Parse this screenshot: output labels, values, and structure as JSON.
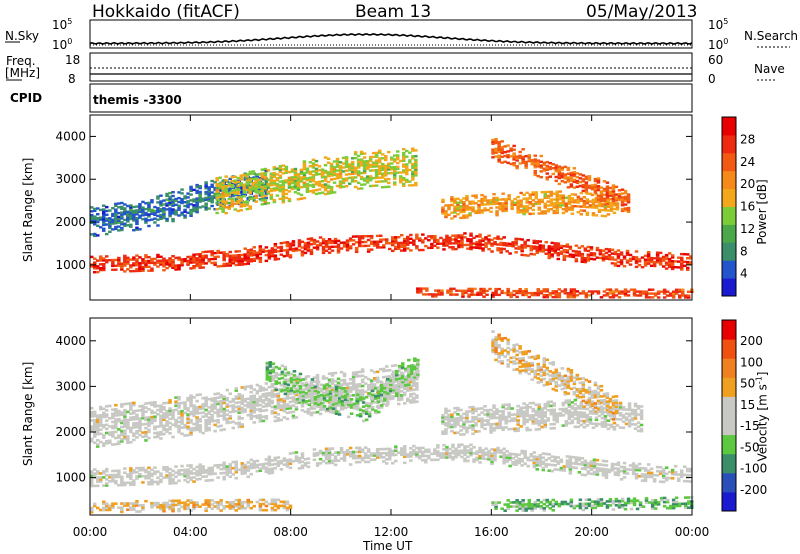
{
  "header": {
    "station": "Hokkaido (fitACF)",
    "beam": "Beam 13",
    "date": "05/May/2013"
  },
  "strips": {
    "nsky": {
      "label": "N.Sky",
      "ticks": [
        "10^5",
        "10^0"
      ]
    },
    "nsearch": {
      "label": "N.Search",
      "ticks": [
        "10^5",
        "10^0"
      ]
    },
    "freq": {
      "label_line1": "Freq.",
      "label_line2": "[MHz]",
      "ticks": [
        "18",
        "8"
      ]
    },
    "nave": {
      "label": "Nave",
      "ticks": [
        "60",
        "0"
      ]
    },
    "cpid": {
      "label": "CPID",
      "value": "themis -3300"
    }
  },
  "colors": {
    "power": [
      "#1a1ad0",
      "#2255cc",
      "#3a8f6a",
      "#4aa84a",
      "#7ccc3a",
      "#f2a81a",
      "#f58a1a",
      "#f25a14",
      "#ee2a10",
      "#e80000"
    ],
    "velocity": [
      "#1a1ad0",
      "#2a4fb8",
      "#3a8f6a",
      "#5cc840",
      "#c8c8c4",
      "#c8c8c4",
      "#f0a020",
      "#f08020",
      "#f05010",
      "#e80000"
    ]
  },
  "chart_data": [
    {
      "type": "heatmap",
      "title": "",
      "xlabel": "",
      "ylabel": "Slant Range [km]",
      "x_ticks": [
        "00:00",
        "04:00",
        "08:00",
        "12:00",
        "16:00",
        "20:00",
        "00:00"
      ],
      "y_ticks": [
        "1000",
        "2000",
        "3000",
        "4000"
      ],
      "xlim_hours": [
        0,
        24
      ],
      "ylim_km": [
        180,
        4500
      ],
      "colorbar": {
        "label": "Power [dB]",
        "ticks": [
          "28",
          "24",
          "20",
          "16",
          "12",
          "8",
          "4"
        ],
        "range": [
          0,
          30
        ]
      },
      "bands": [
        {
          "t0": 0,
          "t1": 24,
          "r_center": [
            1000,
            1050,
            1180,
            1450,
            1500,
            1550,
            1350,
            1150,
            1050
          ],
          "width_km": 380,
          "value_db": 25
        },
        {
          "t0": 0,
          "t1": 7,
          "r_center": [
            2000,
            2200,
            2600,
            2900
          ],
          "width_km": 700,
          "value_db": 6
        },
        {
          "t0": 5,
          "t1": 13,
          "r_center": [
            2600,
            2900,
            3200,
            3300
          ],
          "width_km": 900,
          "value_db": 15
        },
        {
          "t0": 14,
          "t1": 21,
          "r_center": [
            2300,
            2400,
            2450,
            2350
          ],
          "width_km": 500,
          "value_db": 18
        },
        {
          "t0": 16,
          "t1": 21.5,
          "r_center": [
            3700,
            3300,
            2900,
            2400
          ],
          "width_km": 500,
          "value_db": 22
        },
        {
          "t0": 13,
          "t1": 24,
          "r_center": [
            350,
            330,
            320
          ],
          "width_km": 200,
          "value_db": 24
        }
      ]
    },
    {
      "type": "heatmap",
      "title": "",
      "xlabel": "Time UT",
      "ylabel": "Slant Range [km]",
      "x_ticks": [
        "00:00",
        "04:00",
        "08:00",
        "12:00",
        "16:00",
        "20:00",
        "00:00"
      ],
      "y_ticks": [
        "1000",
        "2000",
        "3000",
        "4000"
      ],
      "xlim_hours": [
        0,
        24
      ],
      "ylim_km": [
        180,
        4500
      ],
      "colorbar": {
        "label": "Velocity [m s^-1]",
        "ticks": [
          "200",
          "100",
          "50",
          "15",
          "-15",
          "-50",
          "-100",
          "-200"
        ],
        "range": [
          -250,
          250
        ]
      },
      "bands": [
        {
          "t0": 0,
          "t1": 24,
          "r_center": [
            1000,
            1050,
            1180,
            1450,
            1500,
            1550,
            1350,
            1150,
            1050
          ],
          "width_km": 400,
          "value": 0
        },
        {
          "t0": 0,
          "t1": 13,
          "r_center": [
            2100,
            2400,
            2800,
            3100
          ],
          "width_km": 900,
          "value": 0
        },
        {
          "t0": 7,
          "t1": 13,
          "r_center": [
            3300,
            2800,
            2500,
            3500
          ],
          "width_km": 600,
          "value": -60
        },
        {
          "t0": 14,
          "t1": 22,
          "r_center": [
            2200,
            2300,
            2400,
            2300
          ],
          "width_km": 600,
          "value": 0
        },
        {
          "t0": 16,
          "t1": 21,
          "r_center": [
            3900,
            3400,
            3000,
            2500
          ],
          "width_km": 600,
          "value": 50
        },
        {
          "t0": 0,
          "t1": 8,
          "r_center": [
            350,
            380,
            400
          ],
          "width_km": 250,
          "value": 50
        },
        {
          "t0": 16,
          "t1": 24,
          "r_center": [
            380,
            400,
            450
          ],
          "width_km": 250,
          "value": -80
        }
      ]
    }
  ]
}
